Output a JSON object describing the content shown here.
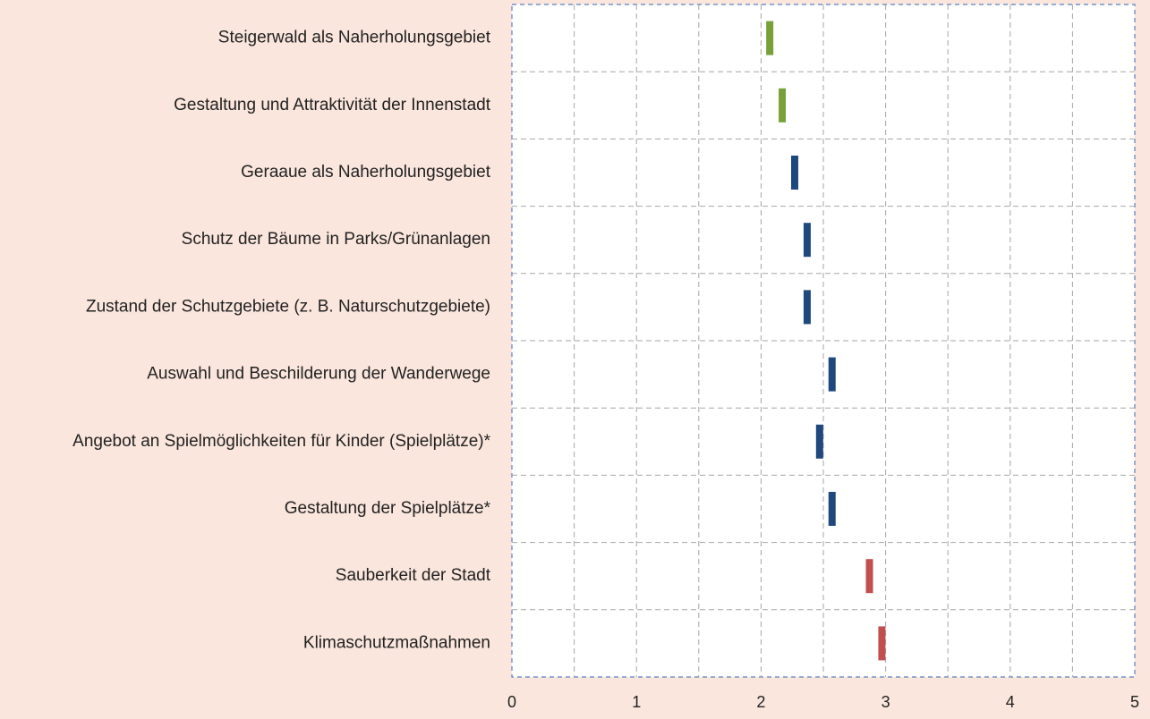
{
  "chart_data": {
    "type": "dot",
    "categories": [
      "Steigerwald als Naherholungsgebiet",
      "Gestaltung und Attraktivität der Innenstadt",
      "Geraaue als Naherholungsgebiet",
      "Schutz der Bäume in Parks/Grünanlagen",
      "Zustand der Schutzgebiete (z. B. Naturschutzgebiete)",
      "Auswahl und Beschilderung der Wanderwege",
      "Angebot an Spielmöglichkeiten für Kinder (Spielplätze)*",
      "Gestaltung der Spielplätze*",
      "Sauberkeit der Stadt",
      "Klimaschutzmaßnahmen"
    ],
    "values": [
      2.07,
      2.17,
      2.27,
      2.37,
      2.37,
      2.57,
      2.47,
      2.57,
      2.87,
      2.97
    ],
    "colors": [
      "#77a03a",
      "#77a03a",
      "#1f497d",
      "#1f497d",
      "#1f497d",
      "#1f497d",
      "#1f497d",
      "#1f497d",
      "#c0504d",
      "#c0504d"
    ],
    "xlim": [
      0,
      5
    ],
    "xticks": [
      0,
      1,
      2,
      3,
      4,
      5
    ],
    "minor_xticks": [
      0.5,
      1.5,
      2.5,
      3.5,
      4.5
    ],
    "grid": true
  }
}
